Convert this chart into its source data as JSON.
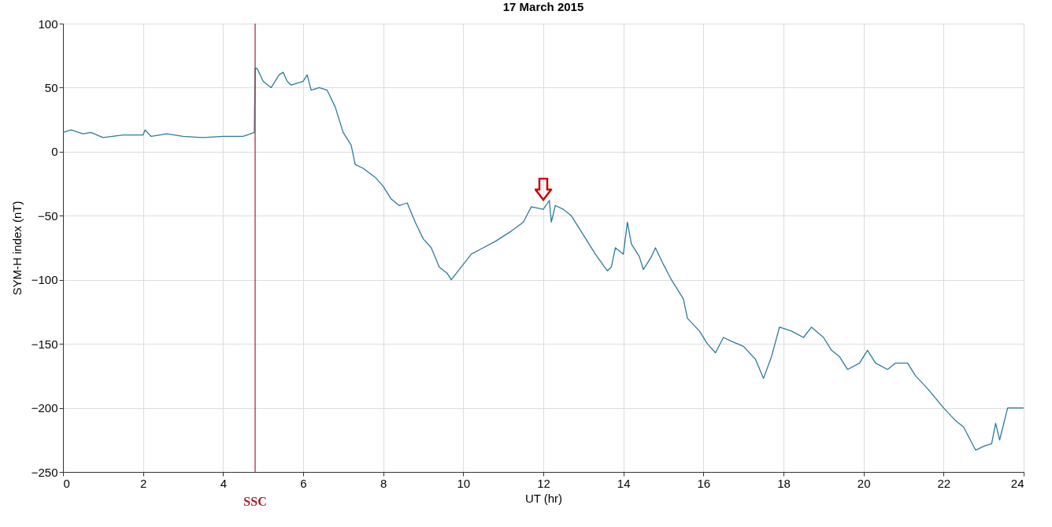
{
  "chart_data": {
    "type": "line",
    "title": "17 March 2015",
    "xlabel": "UT (hr)",
    "ylabel": "SYM-H index (nT)",
    "xlim": [
      0,
      24
    ],
    "xticks": [
      0,
      2,
      4,
      6,
      8,
      10,
      12,
      14,
      16,
      18,
      20,
      22,
      24
    ],
    "ylim": [
      -250,
      100
    ],
    "yticks": [
      -250,
      -200,
      -150,
      -100,
      -50,
      0,
      50,
      100
    ],
    "grid": true,
    "marker": "none",
    "line_style": "solid",
    "ref_lines": [
      {
        "axis": "x",
        "value": 4.8,
        "label": "SSC",
        "color": "#a0202a"
      }
    ],
    "series": [
      {
        "color": "#2b7ba0",
        "x": [
          0,
          0.2,
          0.5,
          0.7,
          1.0,
          1.5,
          2.0,
          2.05,
          2.2,
          2.6,
          3.0,
          3.5,
          4.0,
          4.5,
          4.78,
          4.8,
          4.85,
          5.0,
          5.2,
          5.4,
          5.5,
          5.6,
          5.7,
          6.0,
          6.1,
          6.2,
          6.4,
          6.6,
          6.8,
          7.0,
          7.2,
          7.3,
          7.5,
          7.8,
          8.0,
          8.2,
          8.4,
          8.6,
          8.8,
          9.0,
          9.2,
          9.4,
          9.6,
          9.7,
          9.9,
          10.2,
          10.5,
          10.8,
          11.2,
          11.5,
          11.7,
          12.0,
          12.15,
          12.2,
          12.3,
          12.5,
          12.7,
          13.0,
          13.3,
          13.6,
          13.7,
          13.8,
          14.0,
          14.1,
          14.2,
          14.4,
          14.5,
          14.7,
          14.8,
          15.0,
          15.2,
          15.5,
          15.6,
          15.9,
          16.1,
          16.3,
          16.5,
          16.7,
          17.0,
          17.3,
          17.5,
          17.7,
          17.9,
          18.2,
          18.5,
          18.7,
          19.0,
          19.2,
          19.4,
          19.6,
          19.9,
          20.1,
          20.3,
          20.6,
          20.8,
          21.1,
          21.3,
          21.6,
          22.0,
          22.3,
          22.5,
          22.8,
          23.0,
          23.2,
          23.3,
          23.4,
          23.6,
          24
        ],
        "values": [
          15,
          17,
          14,
          15,
          11,
          13,
          13,
          17,
          12,
          14,
          12,
          11,
          12,
          12,
          15,
          65,
          65,
          55,
          50,
          60,
          62,
          55,
          52,
          55,
          60,
          48,
          50,
          48,
          35,
          15,
          5,
          -10,
          -13,
          -20,
          -27,
          -37,
          -42,
          -40,
          -55,
          -68,
          -75,
          -90,
          -95,
          -100,
          -92,
          -80,
          -75,
          -70,
          -62,
          -55,
          -43,
          -45,
          -38,
          -55,
          -42,
          -45,
          -50,
          -65,
          -80,
          -93,
          -90,
          -75,
          -80,
          -55,
          -72,
          -82,
          -92,
          -82,
          -75,
          -88,
          -100,
          -115,
          -130,
          -140,
          -150,
          -157,
          -145,
          -148,
          -152,
          -162,
          -177,
          -160,
          -137,
          -140,
          -145,
          -137,
          -145,
          -155,
          -160,
          -170,
          -165,
          -155,
          -165,
          -170,
          -165,
          -165,
          -175,
          -185,
          -200,
          -210,
          -215,
          -233,
          -230,
          -228,
          -212,
          -225,
          -200,
          -200
        ]
      }
    ]
  }
}
